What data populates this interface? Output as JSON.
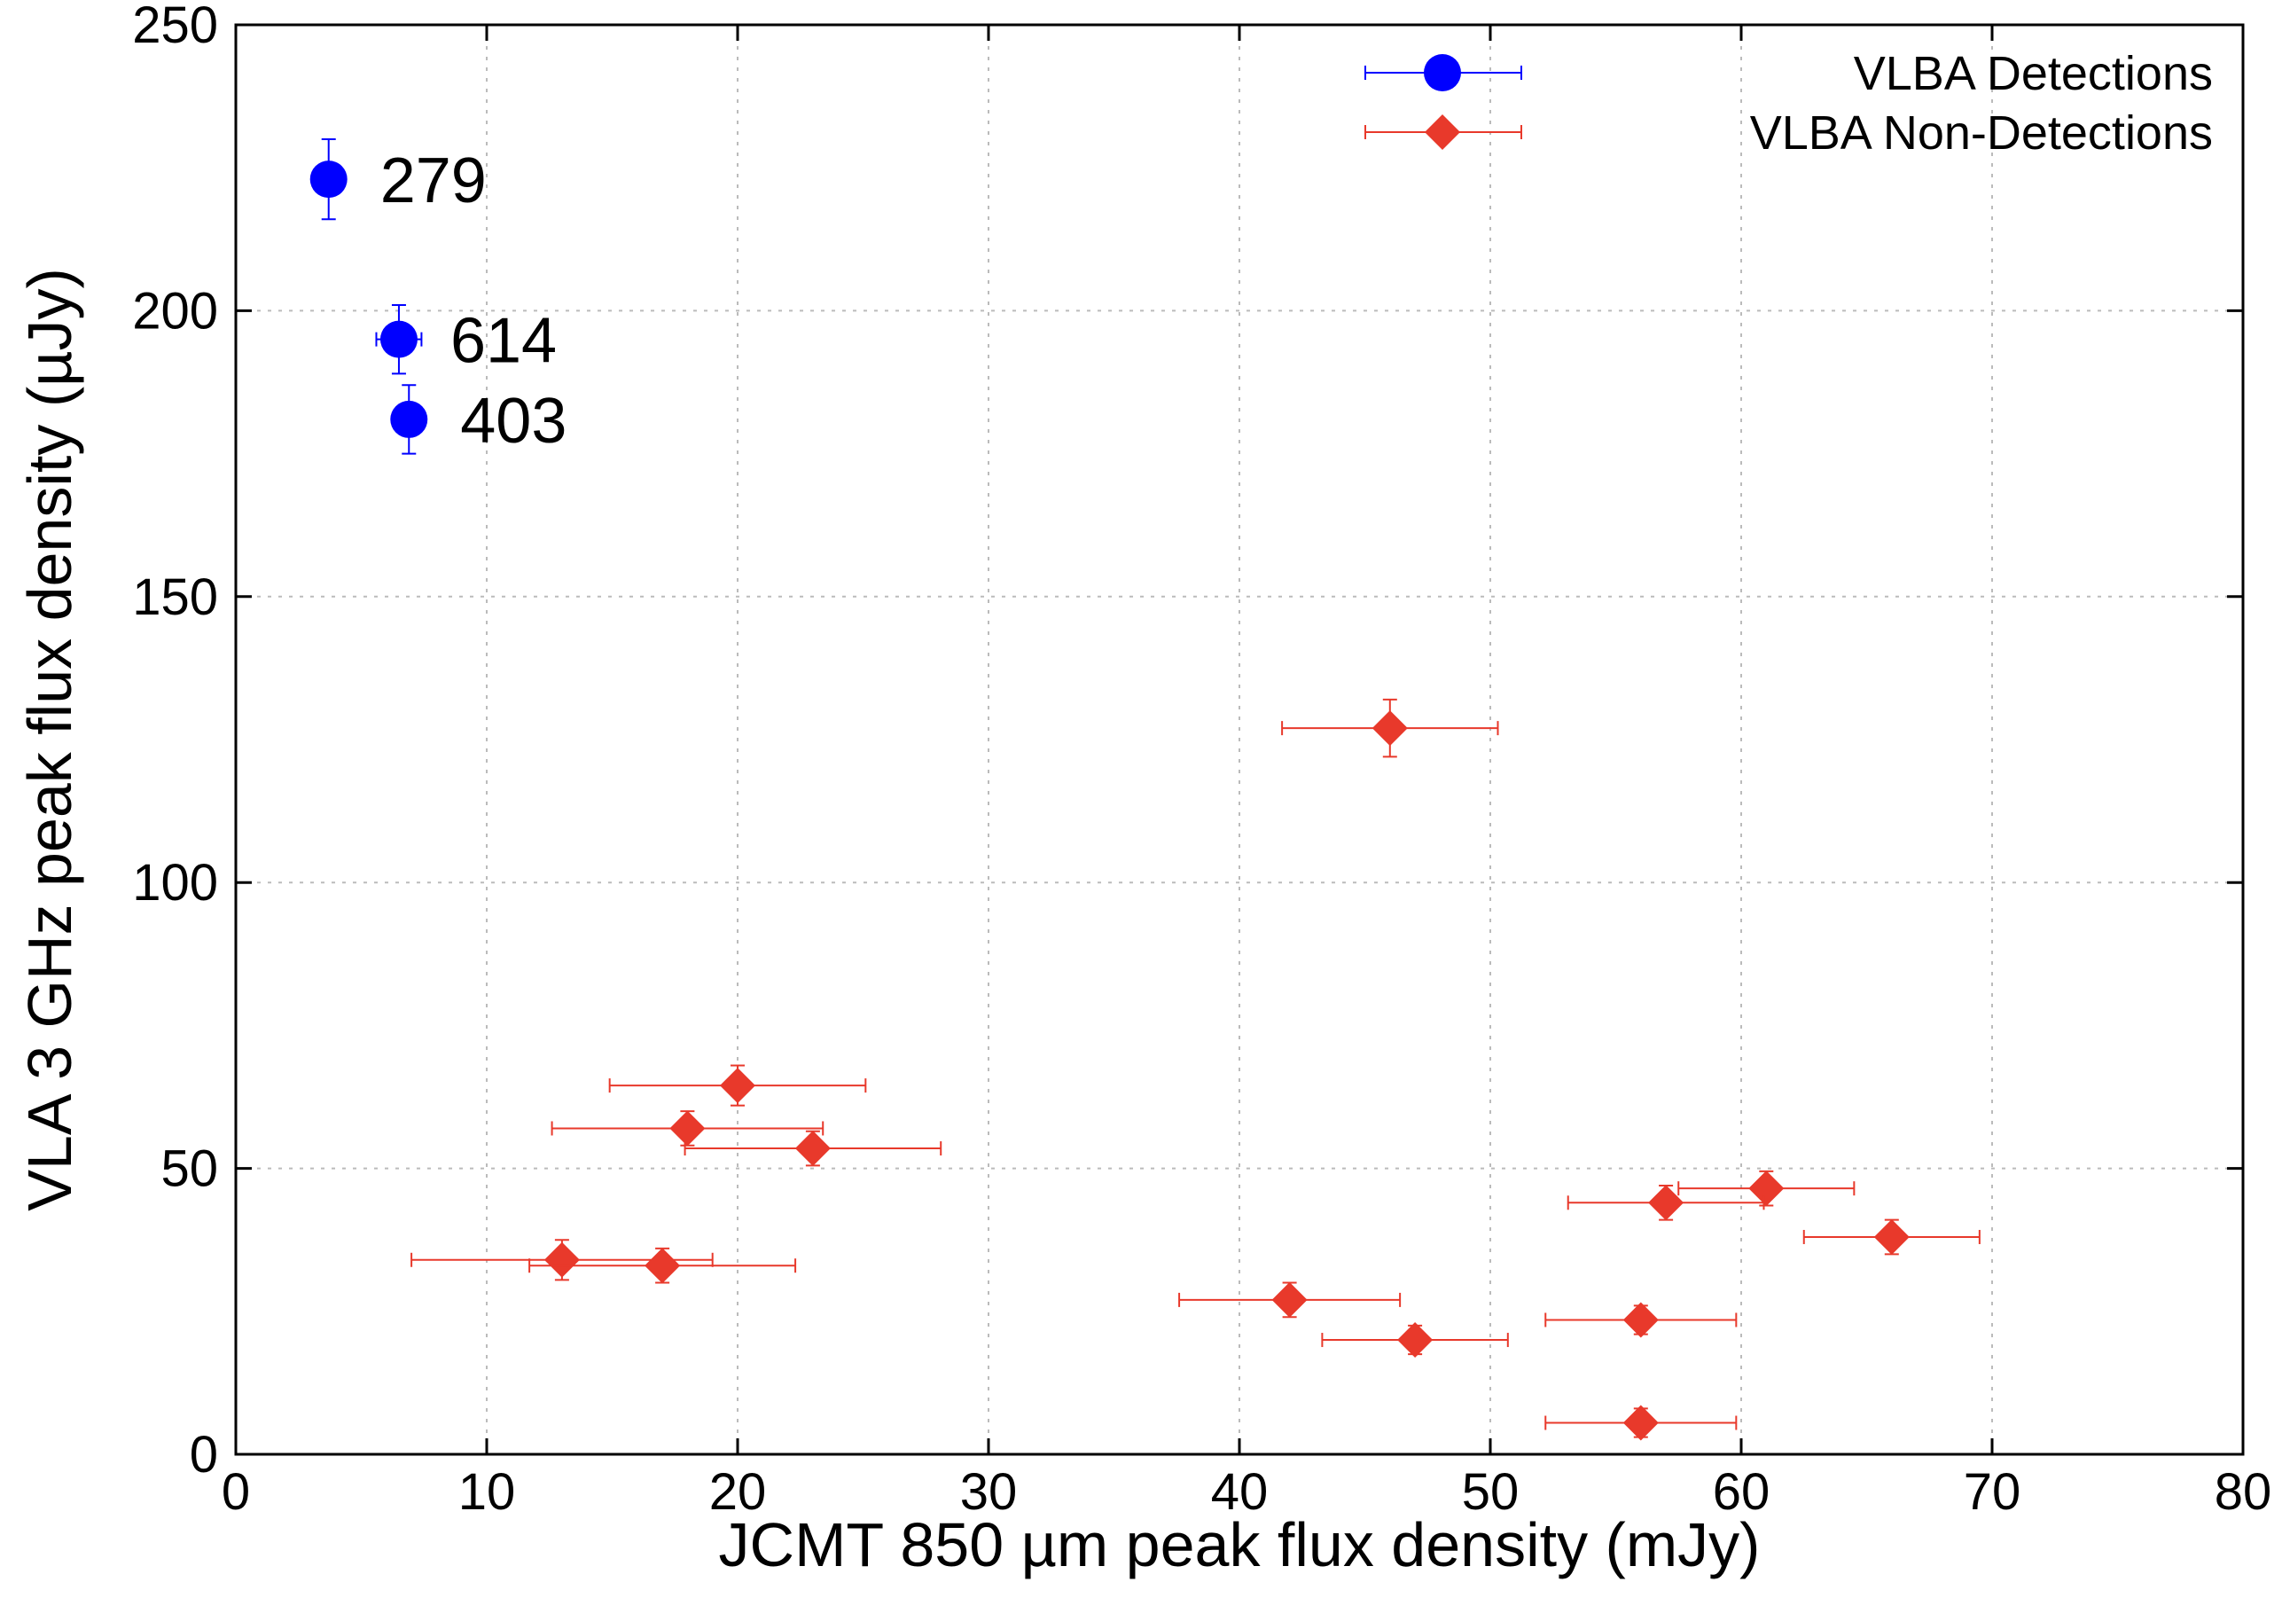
{
  "chart_data": {
    "type": "scatter",
    "title": "",
    "xlabel": "JCMT 850 µm peak flux density (mJy)",
    "ylabel": "VLA 3 GHz peak flux density (µJy)",
    "xlim": [
      0,
      80
    ],
    "ylim": [
      0,
      250
    ],
    "xticks": [
      0,
      10,
      20,
      30,
      40,
      50,
      60,
      70,
      80
    ],
    "yticks": [
      0,
      50,
      100,
      150,
      200,
      250
    ],
    "grid": true,
    "legend_position": "top-right",
    "series": [
      {
        "name": "VLBA Detections",
        "color": "#0000ff",
        "marker": "circle",
        "points": [
          {
            "x": 3.7,
            "y": 223,
            "xerr": 0.6,
            "yerr": 7,
            "label": "279"
          },
          {
            "x": 6.5,
            "y": 195,
            "xerr": 0.9,
            "yerr": 6,
            "label": "614"
          },
          {
            "x": 6.9,
            "y": 181,
            "xerr": 0.6,
            "yerr": 6,
            "label": "403"
          }
        ]
      },
      {
        "name": "VLBA Non-Detections",
        "color": "#e8392b",
        "marker": "diamond",
        "points": [
          {
            "x": 46,
            "y": 127,
            "xerr": 4.3,
            "yerr": 5
          },
          {
            "x": 20,
            "y": 64.5,
            "xerr": 5.1,
            "yerr": 3.5
          },
          {
            "x": 18,
            "y": 57,
            "xerr": 5.4,
            "yerr": 3
          },
          {
            "x": 23,
            "y": 53.5,
            "xerr": 5.1,
            "yerr": 3
          },
          {
            "x": 13,
            "y": 34,
            "xerr": 6.0,
            "yerr": 3.5
          },
          {
            "x": 17,
            "y": 33,
            "xerr": 5.3,
            "yerr": 3
          },
          {
            "x": 61,
            "y": 46.5,
            "xerr": 3.5,
            "yerr": 3
          },
          {
            "x": 57,
            "y": 44,
            "xerr": 3.9,
            "yerr": 3
          },
          {
            "x": 66,
            "y": 38,
            "xerr": 3.5,
            "yerr": 3
          },
          {
            "x": 42,
            "y": 27,
            "xerr": 4.4,
            "yerr": 3
          },
          {
            "x": 47,
            "y": 20,
            "xerr": 3.7,
            "yerr": 2.5
          },
          {
            "x": 56,
            "y": 23.5,
            "xerr": 3.8,
            "yerr": 2.5
          },
          {
            "x": 56,
            "y": 5.5,
            "xerr": 3.8,
            "yerr": 2.5
          }
        ]
      }
    ]
  }
}
